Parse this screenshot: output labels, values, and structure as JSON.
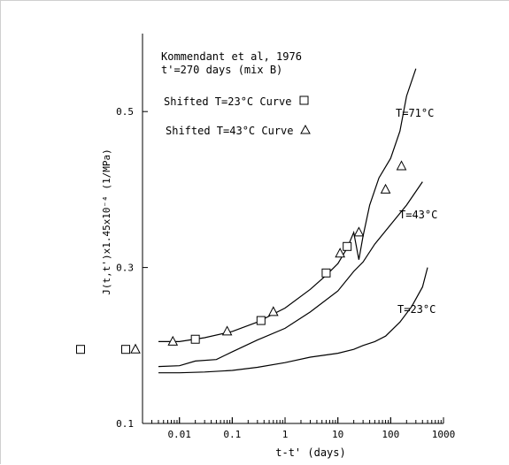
{
  "chart_data": {
    "type": "line",
    "title": "Kommendant et al, 1976",
    "subtitle": "t'=270 days (mix B)",
    "xlabel": "t-t' (days)",
    "ylabel": "J(t,t')x1.45x10⁻⁴ (1/MPa)",
    "x_scale": "log",
    "xlim": [
      0.002,
      1000
    ],
    "ylim": [
      0.1,
      0.6
    ],
    "x_ticks": [
      "0.01",
      "0.1",
      "1",
      "10",
      "100",
      "1000"
    ],
    "y_ticks": [
      "0.1",
      "0.3",
      "0.5"
    ],
    "grid": false,
    "series": [
      {
        "name": "T=71°C",
        "x": [
          0.004,
          0.01,
          0.03,
          0.1,
          0.3,
          1,
          3,
          6,
          10,
          15,
          20,
          25,
          30,
          40,
          60,
          100,
          150,
          200,
          300
        ],
        "y": [
          0.205,
          0.205,
          0.21,
          0.218,
          0.23,
          0.248,
          0.272,
          0.29,
          0.305,
          0.325,
          0.345,
          0.31,
          0.34,
          0.38,
          0.415,
          0.44,
          0.475,
          0.52,
          0.555
        ]
      },
      {
        "name": "T=43°C",
        "x": [
          0.004,
          0.01,
          0.02,
          0.05,
          0.1,
          0.3,
          1,
          3,
          10,
          20,
          30,
          50,
          100,
          200,
          400
        ],
        "y": [
          0.173,
          0.174,
          0.18,
          0.182,
          0.192,
          0.207,
          0.222,
          0.243,
          0.27,
          0.295,
          0.307,
          0.33,
          0.355,
          0.38,
          0.41
        ]
      },
      {
        "name": "T=23°C",
        "x": [
          0.004,
          0.01,
          0.03,
          0.1,
          0.3,
          1,
          3,
          10,
          20,
          30,
          50,
          80,
          150,
          250,
          400,
          500
        ],
        "y": [
          0.165,
          0.165,
          0.166,
          0.168,
          0.172,
          0.178,
          0.185,
          0.19,
          0.195,
          0.2,
          0.205,
          0.212,
          0.23,
          0.25,
          0.275,
          0.3
        ]
      }
    ],
    "markers": [
      {
        "name": "Shifted T=23°C Curve",
        "symbol": "square",
        "x": [
          0.02,
          0.35,
          6,
          15
        ],
        "y": [
          0.208,
          0.232,
          0.293,
          0.327
        ]
      },
      {
        "name": "Shifted T=43°C Curve",
        "symbol": "triangle",
        "x": [
          0.0075,
          0.08,
          0.6,
          11,
          25,
          80,
          160
        ],
        "y": [
          0.205,
          0.218,
          0.243,
          0.318,
          0.345,
          0.4,
          0.43
        ]
      }
    ],
    "unattached_markers": [
      {
        "symbol": "square",
        "y": 0.195,
        "position": "far-left"
      },
      {
        "symbol": "square",
        "y": 0.195,
        "position": "left"
      },
      {
        "symbol": "triangle",
        "y": 0.195,
        "position": "left"
      }
    ]
  }
}
